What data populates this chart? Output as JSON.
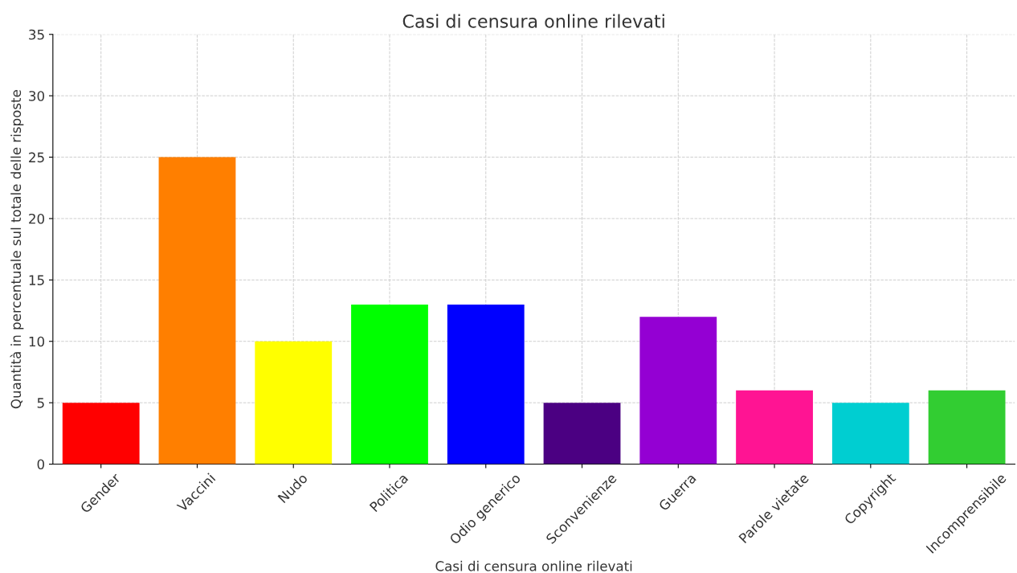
{
  "chart_data": {
    "type": "bar",
    "title": "Casi di censura online rilevati",
    "xlabel": "Casi di censura online rilevati",
    "ylabel": "Quantità in percentuale sul totale delle risposte",
    "categories": [
      "Gender",
      "Vaccini",
      "Nudo",
      "Politica",
      "Odio generico",
      "Sconvenienze",
      "Guerra",
      "Parole vietate",
      "Copyright",
      "Incomprensibile"
    ],
    "values": [
      5,
      25,
      10,
      13,
      13,
      5,
      12,
      6,
      5,
      6
    ],
    "colors": [
      "#ff0000",
      "#ff7f00",
      "#ffff00",
      "#00ff00",
      "#0000ff",
      "#4b0082",
      "#9400d3",
      "#ff1493",
      "#00ced1",
      "#32cd32"
    ],
    "ylim": [
      0,
      35
    ],
    "yticks": [
      0,
      5,
      10,
      15,
      20,
      25,
      30,
      35
    ],
    "grid": true
  }
}
